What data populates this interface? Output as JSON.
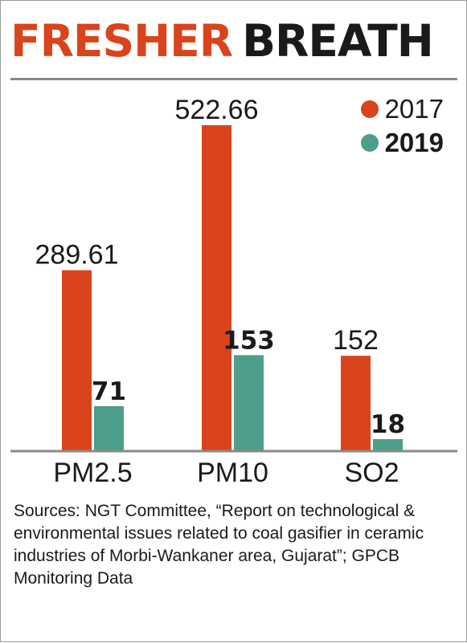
{
  "header": {
    "title_part1": "FRESHER",
    "title_part2": "BREATH"
  },
  "colors": {
    "series_2017": "#d9441c",
    "series_2019": "#4d9e8a",
    "title_accent": "#d9441c"
  },
  "legend": [
    {
      "label": "2017",
      "color": "#d9441c",
      "bold": false
    },
    {
      "label": "2019",
      "color": "#4d9e8a",
      "bold": true
    }
  ],
  "chart_data": {
    "type": "bar",
    "title": "FRESHER BREATH",
    "categories": [
      "PM2.5",
      "PM10",
      "SO2"
    ],
    "series": [
      {
        "name": "2017",
        "values": [
          289.61,
          522.66,
          152
        ],
        "labels": [
          "289.61",
          "522.66",
          "152"
        ],
        "bold": false
      },
      {
        "name": "2019",
        "values": [
          71,
          153,
          18
        ],
        "labels": [
          "71",
          "153",
          "18"
        ],
        "bold": true
      }
    ],
    "xlabel": "",
    "ylabel": "",
    "ylim": [
      0,
      522.66
    ],
    "grid": false,
    "legend_position": "top-right"
  },
  "footer": {
    "source": "Sources: NGT Committee, “Report on technological & environmental issues related to coal gasifier in ceramic industries of Morbi-Wankaner area, Gujarat”; GPCB Monitoring Data"
  }
}
